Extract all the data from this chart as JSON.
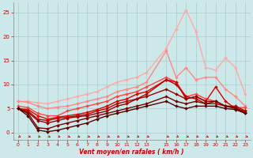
{
  "x": [
    0,
    1,
    2,
    3,
    4,
    5,
    6,
    7,
    8,
    9,
    10,
    11,
    12,
    13,
    15,
    16,
    17,
    18,
    19,
    20,
    21,
    22,
    23
  ],
  "lines": [
    {
      "color": "#ffaaaa",
      "linewidth": 1.0,
      "marker": "D",
      "markersize": 2.0,
      "y": [
        6.5,
        6.5,
        6.2,
        6.0,
        6.5,
        7.0,
        7.5,
        8.0,
        8.5,
        9.5,
        10.5,
        11.0,
        11.5,
        12.5,
        17.5,
        21.5,
        25.5,
        21.0,
        13.5,
        13.0,
        15.5,
        13.5,
        8.0
      ]
    },
    {
      "color": "#ff8888",
      "linewidth": 1.0,
      "marker": "D",
      "markersize": 2.0,
      "y": [
        6.5,
        6.3,
        5.5,
        5.0,
        5.3,
        5.5,
        6.0,
        6.5,
        7.0,
        7.5,
        8.5,
        9.0,
        9.5,
        10.5,
        17.0,
        11.5,
        13.5,
        11.0,
        11.5,
        11.5,
        9.0,
        7.5,
        5.5
      ]
    },
    {
      "color": "#ff4444",
      "linewidth": 1.0,
      "marker": "D",
      "markersize": 2.0,
      "y": [
        5.5,
        5.2,
        4.0,
        3.5,
        3.5,
        4.5,
        5.0,
        5.5,
        6.0,
        6.5,
        7.5,
        8.0,
        8.5,
        9.5,
        11.5,
        10.5,
        7.5,
        8.0,
        7.0,
        6.5,
        5.5,
        5.2,
        5.2
      ]
    },
    {
      "color": "#dd0000",
      "linewidth": 1.0,
      "marker": "D",
      "markersize": 2.0,
      "y": [
        5.0,
        4.8,
        3.5,
        2.8,
        3.2,
        3.5,
        3.8,
        4.2,
        4.8,
        5.5,
        6.5,
        7.0,
        8.0,
        8.5,
        11.0,
        10.5,
        7.0,
        7.5,
        6.5,
        9.5,
        6.5,
        5.0,
        4.5
      ]
    },
    {
      "color": "#bb0000",
      "linewidth": 1.0,
      "marker": "D",
      "markersize": 2.0,
      "y": [
        5.0,
        4.5,
        2.8,
        2.5,
        3.0,
        3.2,
        3.5,
        3.8,
        4.5,
        5.0,
        6.0,
        6.5,
        7.0,
        8.0,
        11.0,
        10.0,
        7.5,
        7.0,
        6.0,
        6.0,
        5.5,
        5.5,
        4.5
      ]
    },
    {
      "color": "#990000",
      "linewidth": 1.0,
      "marker": "D",
      "markersize": 2.0,
      "y": [
        5.0,
        4.2,
        2.5,
        2.0,
        2.5,
        3.0,
        3.3,
        3.5,
        4.0,
        4.5,
        5.5,
        6.0,
        7.0,
        7.5,
        9.0,
        8.0,
        7.0,
        7.5,
        6.5,
        6.5,
        5.5,
        5.2,
        4.2
      ]
    },
    {
      "color": "#770000",
      "linewidth": 1.0,
      "marker": "D",
      "markersize": 2.0,
      "y": [
        5.0,
        4.0,
        1.0,
        0.8,
        1.5,
        2.0,
        2.5,
        3.0,
        3.5,
        4.0,
        4.5,
        5.0,
        5.5,
        6.0,
        7.5,
        6.5,
        6.0,
        6.5,
        6.0,
        6.5,
        5.5,
        5.0,
        4.0
      ]
    },
    {
      "color": "#550000",
      "linewidth": 1.0,
      "marker": "D",
      "markersize": 2.0,
      "y": [
        5.0,
        3.5,
        0.5,
        0.2,
        0.5,
        1.0,
        1.5,
        2.0,
        2.8,
        3.5,
        4.0,
        4.5,
        5.0,
        5.5,
        6.5,
        5.5,
        5.0,
        5.5,
        5.5,
        5.5,
        5.0,
        4.8,
        4.0
      ]
    }
  ],
  "xlim": [
    -0.5,
    23.5
  ],
  "ylim": [
    -1.5,
    27
  ],
  "xticks": [
    0,
    1,
    2,
    3,
    4,
    5,
    6,
    7,
    8,
    9,
    10,
    11,
    12,
    13,
    15,
    16,
    17,
    18,
    19,
    20,
    21,
    22,
    23
  ],
  "yticks": [
    0,
    5,
    10,
    15,
    20,
    25
  ],
  "xlabel": "Vent moyen/en rafales ( km/h )",
  "bg_color": "#cce8e8",
  "grid_color": "#aacccc",
  "tick_color": "#cc0000",
  "label_color": "#cc0000"
}
